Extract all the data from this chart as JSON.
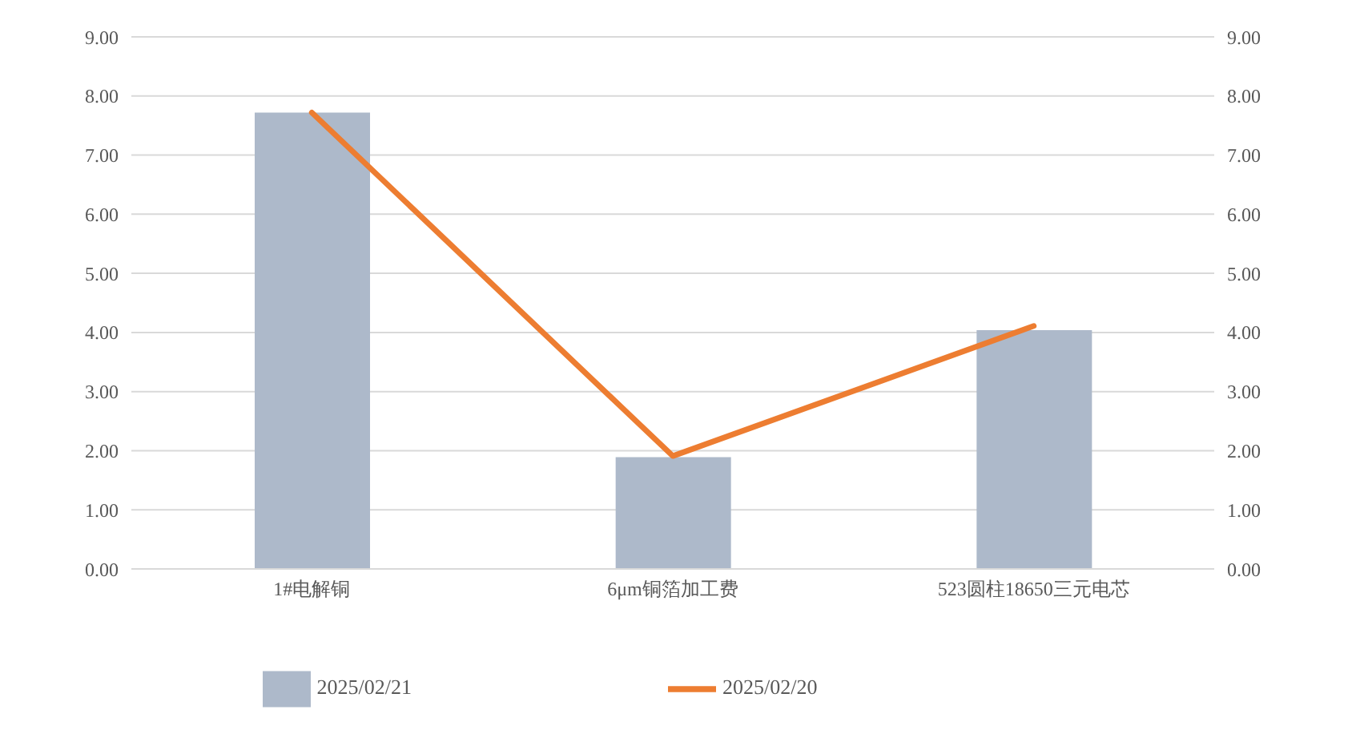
{
  "chart_data": {
    "type": "bar",
    "categories": [
      "1#电解铜",
      "6μm铜箔加工费",
      "523圆柱18650三元电芯"
    ],
    "series": [
      {
        "name": "2025/02/21",
        "color": "#adb9ca",
        "values": [
          7.72,
          1.89,
          4.04
        ]
      },
      {
        "name": "2025/02/20",
        "type": "line",
        "axis": "y2",
        "color": "#ed7d31",
        "values": [
          7.72,
          1.91,
          4.11
        ]
      }
    ],
    "ylim": [
      0,
      9
    ],
    "yticks": [
      {
        "value": 0,
        "label": "0.00"
      },
      {
        "value": 1,
        "label": "1.00"
      },
      {
        "value": 2,
        "label": "2.00"
      },
      {
        "value": 3,
        "label": "3.00"
      },
      {
        "value": 4,
        "label": "4.00"
      },
      {
        "value": 5,
        "label": "5.00"
      },
      {
        "value": 6,
        "label": "6.00"
      },
      {
        "value": 7,
        "label": "7.00"
      },
      {
        "value": 8,
        "label": "8.00"
      },
      {
        "value": 9,
        "label": "9.00"
      }
    ],
    "y2lim": [
      0,
      9
    ],
    "y2ticks": [
      {
        "value": 0,
        "label": "0.00"
      },
      {
        "value": 1,
        "label": "1.00"
      },
      {
        "value": 2,
        "label": "2.00"
      },
      {
        "value": 3,
        "label": "3.00"
      },
      {
        "value": 4,
        "label": "4.00"
      },
      {
        "value": 5,
        "label": "5.00"
      },
      {
        "value": 6,
        "label": "6.00"
      },
      {
        "value": 7,
        "label": "7.00"
      },
      {
        "value": 8,
        "label": "8.00"
      },
      {
        "value": 9,
        "label": "9.00"
      }
    ],
    "grid": "y",
    "legend": "bottom",
    "marker": "none",
    "line_style": "solid"
  }
}
